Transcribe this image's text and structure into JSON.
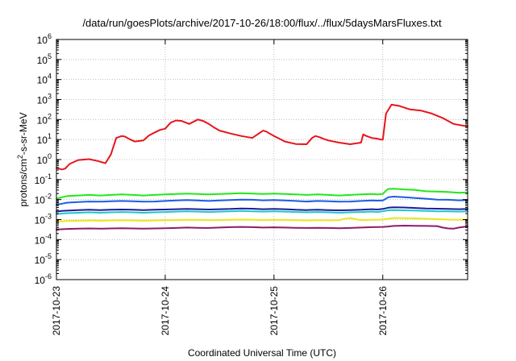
{
  "chart_data": {
    "type": "line",
    "title": "/data/run/goesPlots/archive/2017-10-26/18:00/flux/../flux/5daysMarsFluxes.txt",
    "xlabel": "Coordinated Universal Time (UTC)",
    "ylabel": {
      "prefix": "protons/cm",
      "sup": "2",
      "suffix": "-s-sr-MeV"
    },
    "y_scale": "log",
    "ylim": [
      1e-06,
      1000000.0
    ],
    "y_tick_exponents": [
      -6,
      -5,
      -4,
      -3,
      -2,
      -1,
      0,
      1,
      2,
      3,
      4,
      5,
      6
    ],
    "y_tick_base": "10",
    "xlim": [
      0.0,
      3.78
    ],
    "x_unit": "days since 2017-10-23 00:00 UTC",
    "x_ticks": [
      {
        "pos": 0,
        "label": "2017-10-23"
      },
      {
        "pos": 1,
        "label": "2017-10-24"
      },
      {
        "pos": 2,
        "label": "2017-10-25"
      },
      {
        "pos": 3,
        "label": "2017-10-26"
      }
    ],
    "grid": true,
    "legend": "none",
    "series": [
      {
        "color": "#e8141c",
        "x": [
          0.0,
          0.05,
          0.08,
          0.12,
          0.2,
          0.3,
          0.38,
          0.45,
          0.5,
          0.55,
          0.6,
          0.63,
          0.68,
          0.72,
          0.8,
          0.85,
          0.9,
          0.95,
          1.0,
          1.05,
          1.1,
          1.15,
          1.22,
          1.3,
          1.35,
          1.4,
          1.45,
          1.5,
          1.6,
          1.7,
          1.8,
          1.9,
          1.93,
          1.96,
          2.0,
          2.05,
          2.1,
          2.2,
          2.3,
          2.35,
          2.38,
          2.42,
          2.45,
          2.5,
          2.6,
          2.7,
          2.8,
          2.82,
          2.85,
          2.9,
          2.95,
          2.98,
          3.0,
          3.03,
          3.08,
          3.15,
          3.25,
          3.35,
          3.45,
          3.55,
          3.65,
          3.78
        ],
        "y": [
          0.38,
          0.32,
          0.35,
          0.6,
          0.95,
          1.05,
          0.85,
          0.65,
          1.8,
          12,
          15,
          14,
          10,
          8,
          9,
          16,
          22,
          30,
          35,
          70,
          90,
          85,
          60,
          100,
          85,
          60,
          40,
          28,
          20,
          15,
          12,
          28,
          25,
          20,
          15,
          11,
          8,
          6,
          5.8,
          12,
          15,
          13,
          11,
          9,
          7,
          5.8,
          7,
          18,
          15,
          12,
          11,
          10,
          10,
          200,
          550,
          480,
          320,
          280,
          200,
          120,
          60,
          45
        ]
      },
      {
        "color": "#22e81c",
        "x": [
          0.0,
          0.05,
          0.1,
          0.2,
          0.3,
          0.4,
          0.5,
          0.6,
          0.7,
          0.8,
          0.9,
          1.0,
          1.1,
          1.2,
          1.3,
          1.4,
          1.5,
          1.6,
          1.7,
          1.8,
          1.9,
          2.0,
          2.1,
          2.2,
          2.3,
          2.4,
          2.5,
          2.6,
          2.7,
          2.8,
          2.9,
          2.95,
          3.0,
          3.03,
          3.05,
          3.1,
          3.2,
          3.3,
          3.4,
          3.5,
          3.6,
          3.7,
          3.78
        ],
        "y": [
          0.011,
          0.013,
          0.015,
          0.016,
          0.017,
          0.016,
          0.017,
          0.018,
          0.017,
          0.016,
          0.017,
          0.018,
          0.019,
          0.02,
          0.019,
          0.018,
          0.019,
          0.02,
          0.021,
          0.02,
          0.019,
          0.02,
          0.019,
          0.018,
          0.017,
          0.018,
          0.017,
          0.016,
          0.017,
          0.018,
          0.019,
          0.018,
          0.019,
          0.028,
          0.034,
          0.035,
          0.032,
          0.03,
          0.026,
          0.025,
          0.024,
          0.022,
          0.023
        ]
      },
      {
        "color": "#1c5ce8",
        "x": [
          0.0,
          0.05,
          0.1,
          0.2,
          0.3,
          0.4,
          0.5,
          0.6,
          0.7,
          0.8,
          0.9,
          1.0,
          1.1,
          1.2,
          1.3,
          1.4,
          1.5,
          1.6,
          1.7,
          1.8,
          1.9,
          2.0,
          2.1,
          2.2,
          2.3,
          2.4,
          2.5,
          2.6,
          2.7,
          2.8,
          2.9,
          2.95,
          3.0,
          3.03,
          3.05,
          3.1,
          3.2,
          3.3,
          3.4,
          3.5,
          3.6,
          3.7,
          3.78
        ],
        "y": [
          0.0055,
          0.0062,
          0.007,
          0.0075,
          0.008,
          0.0078,
          0.0082,
          0.0085,
          0.0082,
          0.0078,
          0.008,
          0.0085,
          0.009,
          0.0095,
          0.009,
          0.0085,
          0.009,
          0.0095,
          0.01,
          0.0098,
          0.0092,
          0.0095,
          0.009,
          0.0085,
          0.008,
          0.0085,
          0.0082,
          0.0078,
          0.008,
          0.0085,
          0.009,
          0.0088,
          0.009,
          0.011,
          0.013,
          0.014,
          0.013,
          0.012,
          0.011,
          0.01,
          0.0098,
          0.0092,
          0.0095
        ]
      },
      {
        "color": "#1c1c9c",
        "x": [
          0.0,
          0.05,
          0.1,
          0.2,
          0.3,
          0.4,
          0.5,
          0.6,
          0.7,
          0.8,
          0.9,
          1.0,
          1.1,
          1.2,
          1.3,
          1.4,
          1.5,
          1.6,
          1.7,
          1.8,
          1.9,
          2.0,
          2.1,
          2.2,
          2.3,
          2.4,
          2.5,
          2.6,
          2.7,
          2.8,
          2.9,
          2.95,
          3.0,
          3.05,
          3.1,
          3.2,
          3.3,
          3.4,
          3.5,
          3.6,
          3.7,
          3.78
        ],
        "y": [
          0.0025,
          0.0027,
          0.0028,
          0.003,
          0.0031,
          0.003,
          0.0031,
          0.0032,
          0.0031,
          0.003,
          0.0031,
          0.0032,
          0.0033,
          0.0034,
          0.0033,
          0.0032,
          0.0033,
          0.0034,
          0.0036,
          0.0035,
          0.0033,
          0.0034,
          0.0033,
          0.0031,
          0.003,
          0.0031,
          0.003,
          0.0029,
          0.003,
          0.0031,
          0.0033,
          0.0032,
          0.0034,
          0.0039,
          0.0041,
          0.004,
          0.0038,
          0.0036,
          0.0035,
          0.0034,
          0.0033,
          0.0034
        ]
      },
      {
        "color": "#1cc8c8",
        "x": [
          0.0,
          0.05,
          0.1,
          0.2,
          0.3,
          0.4,
          0.5,
          0.6,
          0.7,
          0.8,
          0.9,
          1.0,
          1.1,
          1.2,
          1.3,
          1.4,
          1.5,
          1.6,
          1.7,
          1.8,
          1.9,
          2.0,
          2.1,
          2.2,
          2.3,
          2.4,
          2.5,
          2.6,
          2.7,
          2.8,
          2.9,
          2.95,
          3.0,
          3.05,
          3.1,
          3.2,
          3.3,
          3.4,
          3.5,
          3.6,
          3.7,
          3.78
        ],
        "y": [
          0.0019,
          0.002,
          0.0021,
          0.0022,
          0.0023,
          0.0022,
          0.0023,
          0.0024,
          0.0023,
          0.0022,
          0.0023,
          0.0024,
          0.0025,
          0.0026,
          0.0025,
          0.0024,
          0.0025,
          0.0026,
          0.0027,
          0.0026,
          0.0025,
          0.0026,
          0.0025,
          0.0024,
          0.0023,
          0.0024,
          0.0023,
          0.0022,
          0.0023,
          0.0024,
          0.0025,
          0.0024,
          0.0026,
          0.0029,
          0.003,
          0.0029,
          0.0028,
          0.0027,
          0.0026,
          0.0026,
          0.0025,
          0.0026
        ]
      },
      {
        "color": "#e8e81c",
        "x": [
          0.0,
          0.05,
          0.1,
          0.2,
          0.3,
          0.4,
          0.5,
          0.6,
          0.7,
          0.8,
          0.9,
          1.0,
          1.1,
          1.2,
          1.3,
          1.4,
          1.5,
          1.6,
          1.7,
          1.8,
          1.9,
          2.0,
          2.1,
          2.2,
          2.3,
          2.4,
          2.5,
          2.6,
          2.65,
          2.7,
          2.75,
          2.8,
          2.9,
          3.0,
          3.05,
          3.1,
          3.2,
          3.3,
          3.4,
          3.5,
          3.6,
          3.7,
          3.78
        ],
        "y": [
          0.0008,
          0.00082,
          0.00085,
          0.00088,
          0.0009,
          0.00088,
          0.0009,
          0.00092,
          0.0009,
          0.00088,
          0.0009,
          0.00092,
          0.00095,
          0.00098,
          0.00096,
          0.00093,
          0.00095,
          0.00098,
          0.001,
          0.00099,
          0.00095,
          0.00098,
          0.00096,
          0.00093,
          0.0009,
          0.00093,
          0.00091,
          0.00095,
          0.0011,
          0.0012,
          0.00105,
          0.00095,
          0.00098,
          0.001,
          0.0011,
          0.0012,
          0.00118,
          0.00115,
          0.0011,
          0.00105,
          0.001,
          0.00098,
          0.001
        ]
      },
      {
        "color": "#8c1c6c",
        "x": [
          0.0,
          0.05,
          0.1,
          0.2,
          0.3,
          0.4,
          0.5,
          0.6,
          0.7,
          0.8,
          0.9,
          1.0,
          1.1,
          1.2,
          1.3,
          1.4,
          1.5,
          1.6,
          1.7,
          1.8,
          1.9,
          2.0,
          2.1,
          2.2,
          2.3,
          2.4,
          2.5,
          2.6,
          2.7,
          2.8,
          2.9,
          3.0,
          3.05,
          3.1,
          3.2,
          3.3,
          3.4,
          3.5,
          3.55,
          3.6,
          3.65,
          3.7,
          3.78
        ],
        "y": [
          0.00032,
          0.00033,
          0.00034,
          0.00035,
          0.00036,
          0.00035,
          0.00036,
          0.00037,
          0.00036,
          0.00035,
          0.00036,
          0.00037,
          0.00038,
          0.0004,
          0.00039,
          0.00038,
          0.0004,
          0.00042,
          0.00043,
          0.00042,
          0.0004,
          0.00041,
          0.0004,
          0.00039,
          0.00038,
          0.00039,
          0.00038,
          0.00037,
          0.00038,
          0.0004,
          0.00042,
          0.00043,
          0.00045,
          0.00048,
          0.0005,
          0.00049,
          0.00048,
          0.00047,
          0.0004,
          0.00036,
          0.00035,
          0.0004,
          0.00046
        ]
      }
    ]
  }
}
